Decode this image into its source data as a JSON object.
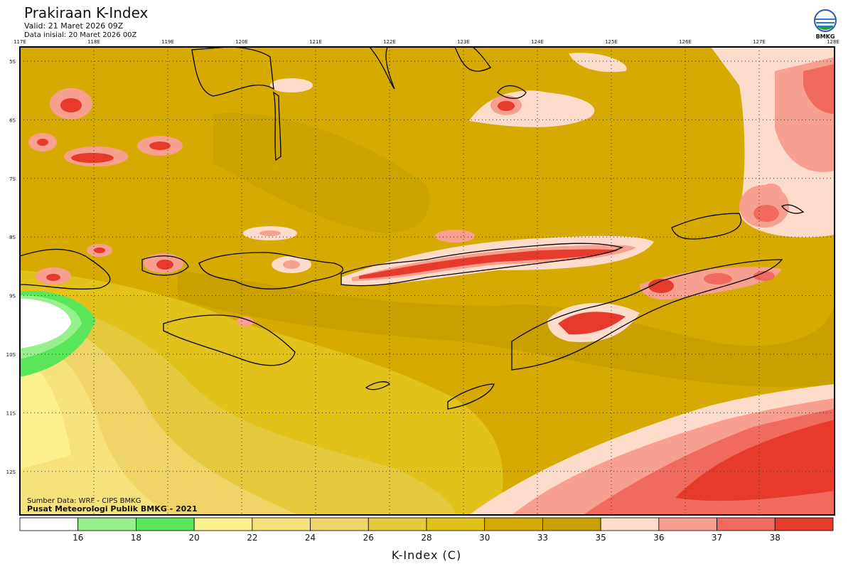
{
  "header": {
    "title": "Prakiraan K-Index",
    "valid": "Valid: 21 Maret 2026 09Z",
    "initial": "Data inisial: 20 Maret 2026 00Z"
  },
  "logo": {
    "label": "BMKG"
  },
  "map": {
    "longitude_labels": [
      "117E",
      "118E",
      "119E",
      "120E",
      "121E",
      "122E",
      "123E",
      "124E",
      "125E",
      "126E",
      "127E",
      "128E"
    ],
    "latitude_labels": [
      "5S",
      "6S",
      "7S",
      "8S",
      "9S",
      "10S",
      "11S",
      "12S"
    ],
    "credits": [
      "Sumber Data: WRF - CIPS BMKG",
      "Pusat Meteorologi Publik BMKG - 2021"
    ]
  },
  "colorbar": {
    "ticks": [
      16,
      18,
      20,
      22,
      24,
      26,
      28,
      30,
      33,
      35,
      36,
      37,
      38
    ],
    "colors": [
      "#ffffff",
      "#96f08c",
      "#5ae65a",
      "#fdf08e",
      "#f6e27c",
      "#efd468",
      "#e7c93e",
      "#e2c21a",
      "#d6aa00",
      "#c9a000",
      "#fddccb",
      "#f8a08f",
      "#f06a5d",
      "#e63a2a"
    ],
    "label": "K-Index (C)"
  }
}
